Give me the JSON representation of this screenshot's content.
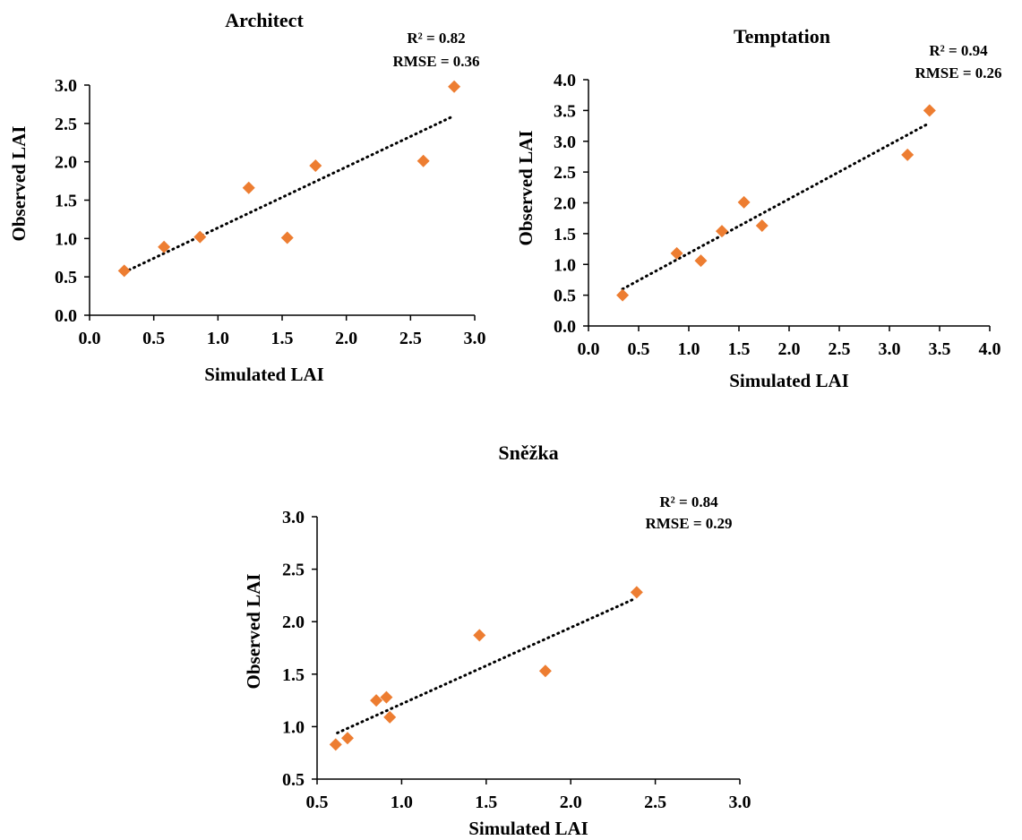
{
  "chart_data": [
    {
      "type": "scatter",
      "title": "Architect",
      "xlabel": "Simulated LAI",
      "ylabel": "Observed LAI",
      "xlim": [
        0.0,
        3.0
      ],
      "ylim": [
        0.0,
        3.0
      ],
      "xticks": [
        "0.0",
        "0.5",
        "1.0",
        "1.5",
        "2.0",
        "2.5",
        "3.0"
      ],
      "yticks": [
        "0.0",
        "0.5",
        "1.0",
        "1.5",
        "2.0",
        "2.5",
        "3.0"
      ],
      "grid": false,
      "marker": "diamond",
      "point_color": "#ED7D31",
      "trendline": {
        "style": "dotted",
        "color": "#000000",
        "x": [
          0.27,
          2.84
        ],
        "y": [
          0.56,
          2.6
        ]
      },
      "stats": [
        "R² = 0.82",
        "RMSE = 0.36"
      ],
      "x": [
        0.27,
        0.58,
        0.86,
        1.24,
        1.54,
        1.76,
        2.6,
        2.84
      ],
      "y": [
        0.58,
        0.89,
        1.02,
        1.66,
        1.01,
        1.95,
        2.01,
        2.98
      ]
    },
    {
      "type": "scatter",
      "title": "Temptation",
      "xlabel": "Simulated LAI",
      "ylabel": "Observed LAI",
      "xlim": [
        0.0,
        4.0
      ],
      "ylim": [
        0.0,
        4.0
      ],
      "xticks": [
        "0.0",
        "0.5",
        "1.0",
        "1.5",
        "2.0",
        "2.5",
        "3.0",
        "3.5",
        "4.0"
      ],
      "yticks": [
        "0.0",
        "0.5",
        "1.0",
        "1.5",
        "2.0",
        "2.5",
        "3.0",
        "3.5",
        "4.0"
      ],
      "grid": false,
      "marker": "diamond",
      "point_color": "#ED7D31",
      "trendline": {
        "style": "dotted",
        "color": "#000000",
        "x": [
          0.34,
          3.38
        ],
        "y": [
          0.6,
          3.28
        ]
      },
      "stats": [
        "R² = 0.94",
        "RMSE = 0.26"
      ],
      "x": [
        0.34,
        0.88,
        1.12,
        1.33,
        1.55,
        1.73,
        3.18,
        3.4
      ],
      "y": [
        0.5,
        1.18,
        1.06,
        1.54,
        2.01,
        1.63,
        2.78,
        3.5
      ]
    },
    {
      "type": "scatter",
      "title": "Sněžka",
      "xlabel": "Simulated LAI",
      "ylabel": "Observed LAI",
      "xlim": [
        0.5,
        3.0
      ],
      "ylim": [
        0.5,
        3.0
      ],
      "xticks": [
        "0.5",
        "1.0",
        "1.5",
        "2.0",
        "2.5",
        "3.0"
      ],
      "yticks": [
        "0.5",
        "1.0",
        "1.5",
        "2.0",
        "2.5",
        "3.0"
      ],
      "grid": false,
      "marker": "diamond",
      "point_color": "#ED7D31",
      "trendline": {
        "style": "dotted",
        "color": "#000000",
        "x": [
          0.62,
          2.38
        ],
        "y": [
          0.94,
          2.22
        ]
      },
      "stats": [
        "R² = 0.84",
        "RMSE = 0.29"
      ],
      "x": [
        0.61,
        0.68,
        0.85,
        0.91,
        0.93,
        1.46,
        1.85,
        2.39
      ],
      "y": [
        0.83,
        0.89,
        1.25,
        1.28,
        1.09,
        1.87,
        1.53,
        2.28
      ]
    }
  ]
}
